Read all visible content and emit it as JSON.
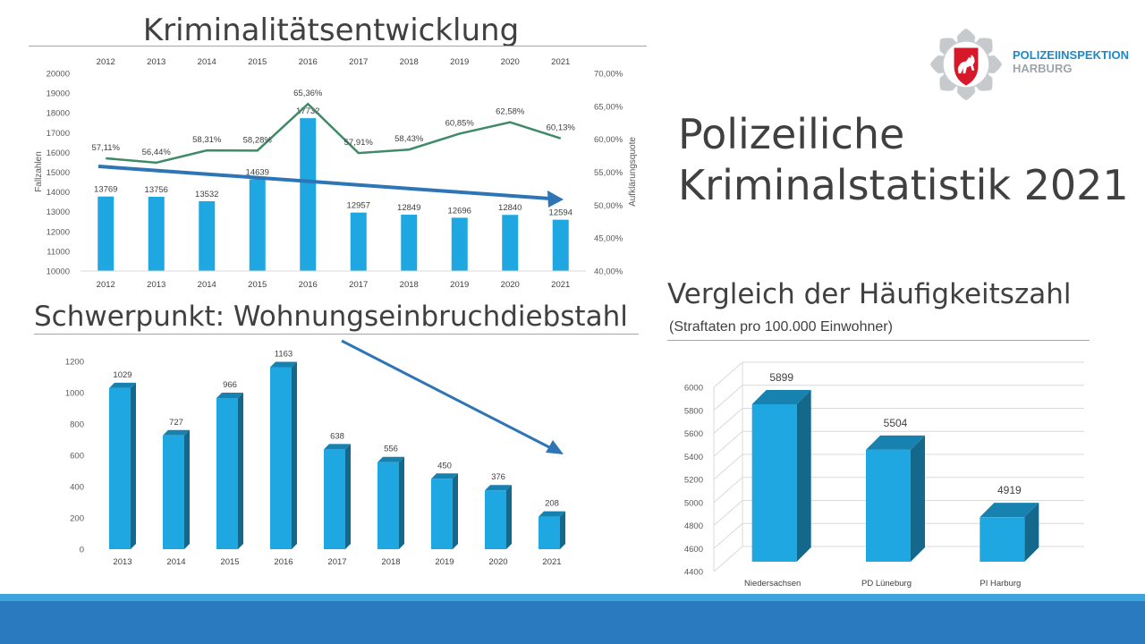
{
  "slide": {
    "title_line1": "Polizeiliche",
    "title_line2": "Kriminalstatistik 2021"
  },
  "logo": {
    "line1": "POLIZEIINSPEKTION",
    "line2": "HARBURG",
    "icon": "police-star-emblem-icon"
  },
  "sections": {
    "crime_title": "Kriminalitätsentwicklung",
    "burglary_title": "Schwerpunkt: Wohnungseinbruchdiebstahl",
    "comparison_title": "Vergleich der Häufigkeitszahl",
    "comparison_subtitle": "(Straftaten pro 100.000 Einwohner)"
  },
  "colors": {
    "bar": "#1ea7e1",
    "bar_side": "#136f9d",
    "line": "#3f8a67",
    "trend_arrow": "#2e75b6",
    "footer_light": "#3da5dc",
    "footer_dark": "#2a7ac0"
  },
  "chart_data": [
    {
      "type": "bar",
      "categories": [
        "2012",
        "2013",
        "2014",
        "2015",
        "2016",
        "2017",
        "2018",
        "2019",
        "2020",
        "2021"
      ],
      "series": [
        {
          "name": "",
          "values": [
            13769,
            13756,
            13532,
            14639,
            17732,
            12957,
            12849,
            12696,
            12840,
            12594
          ]
        }
      ],
      "bar_labels": [
        "13769",
        "13756",
        "13532",
        "14639",
        "17732",
        "12957",
        "12849",
        "12696",
        "12840",
        "12594"
      ],
      "line_series": {
        "values": [
          57.11,
          56.44,
          58.31,
          58.28,
          65.36,
          57.91,
          58.43,
          60.85,
          62.58,
          60.13
        ]
      },
      "line_labels": [
        "57,11%",
        "56,44%",
        "58,31%",
        "58,28%",
        "65,36%",
        "57,91%",
        "58,43%",
        "60,85%",
        "62,58%",
        "60,13%"
      ],
      "ylabel": "Fallzahlen",
      "y2label": "Aufklärungsquote",
      "ylim": [
        10000,
        20000
      ],
      "y_ticks": [
        "10000",
        "11000",
        "12000",
        "13000",
        "14000",
        "15000",
        "16000",
        "17000",
        "18000",
        "19000",
        "20000"
      ],
      "y2lim": [
        40,
        70
      ],
      "y2_ticks": [
        "40,00%",
        "45,00%",
        "50,00%",
        "55,00%",
        "60,00%",
        "65,00%",
        "70,00%"
      ],
      "top_axis_labels": true,
      "trend": "decreasing",
      "grid": false
    },
    {
      "type": "bar",
      "style": "3d",
      "categories": [
        "2013",
        "2014",
        "2015",
        "2016",
        "2017",
        "2018",
        "2019",
        "2020",
        "2021"
      ],
      "series": [
        {
          "name": "",
          "values": [
            1029,
            727,
            966,
            1163,
            638,
            556,
            450,
            376,
            208
          ]
        }
      ],
      "bar_labels": [
        "1029",
        "727",
        "966",
        "1163",
        "638",
        "556",
        "450",
        "376",
        "208"
      ],
      "ylim": [
        0,
        1200
      ],
      "y_ticks": [
        "0",
        "200",
        "400",
        "600",
        "800",
        "1000",
        "1200"
      ],
      "trend": "decreasing",
      "grid": false
    },
    {
      "type": "bar",
      "style": "3d",
      "categories": [
        "Niedersachsen",
        "PD Lüneburg",
        "PI Harburg"
      ],
      "series": [
        {
          "name": "",
          "values": [
            5899,
            5504,
            4919
          ]
        }
      ],
      "bar_labels": [
        "5899",
        "5504",
        "4919"
      ],
      "ylim": [
        4400,
        6000
      ],
      "y_ticks": [
        "4400",
        "4600",
        "4800",
        "5000",
        "5200",
        "5400",
        "5600",
        "5800",
        "6000"
      ],
      "grid": true
    }
  ]
}
